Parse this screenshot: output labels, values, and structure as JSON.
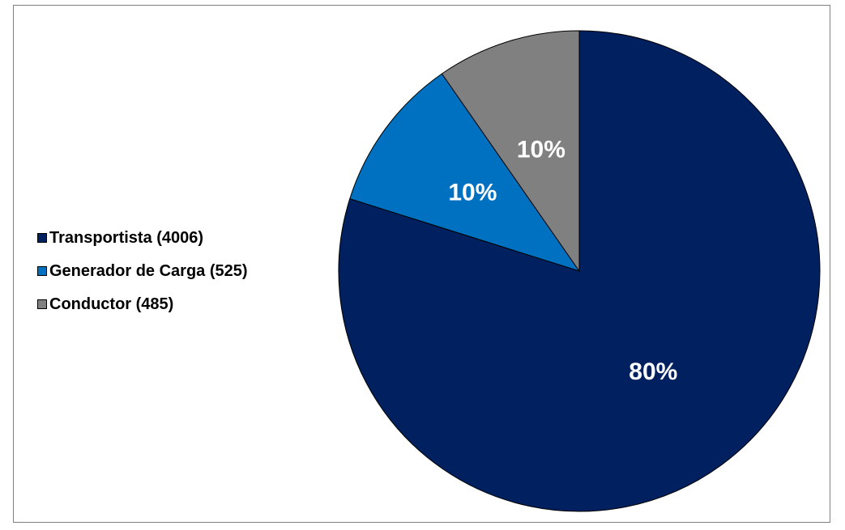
{
  "chart_data": {
    "type": "pie",
    "slices": [
      {
        "name": "Transportista (4006)",
        "value": 4006,
        "percent_label": "80%",
        "color": "#002060"
      },
      {
        "name": "Generador de Carga (525)",
        "value": 525,
        "percent_label": "10%",
        "color": "#0070C0"
      },
      {
        "name": "Conductor (485)",
        "value": 485,
        "percent_label": "10%",
        "color": "#808080"
      }
    ],
    "start_angle": "12 o'clock",
    "direction": "clockwise",
    "legend_position": "left"
  }
}
